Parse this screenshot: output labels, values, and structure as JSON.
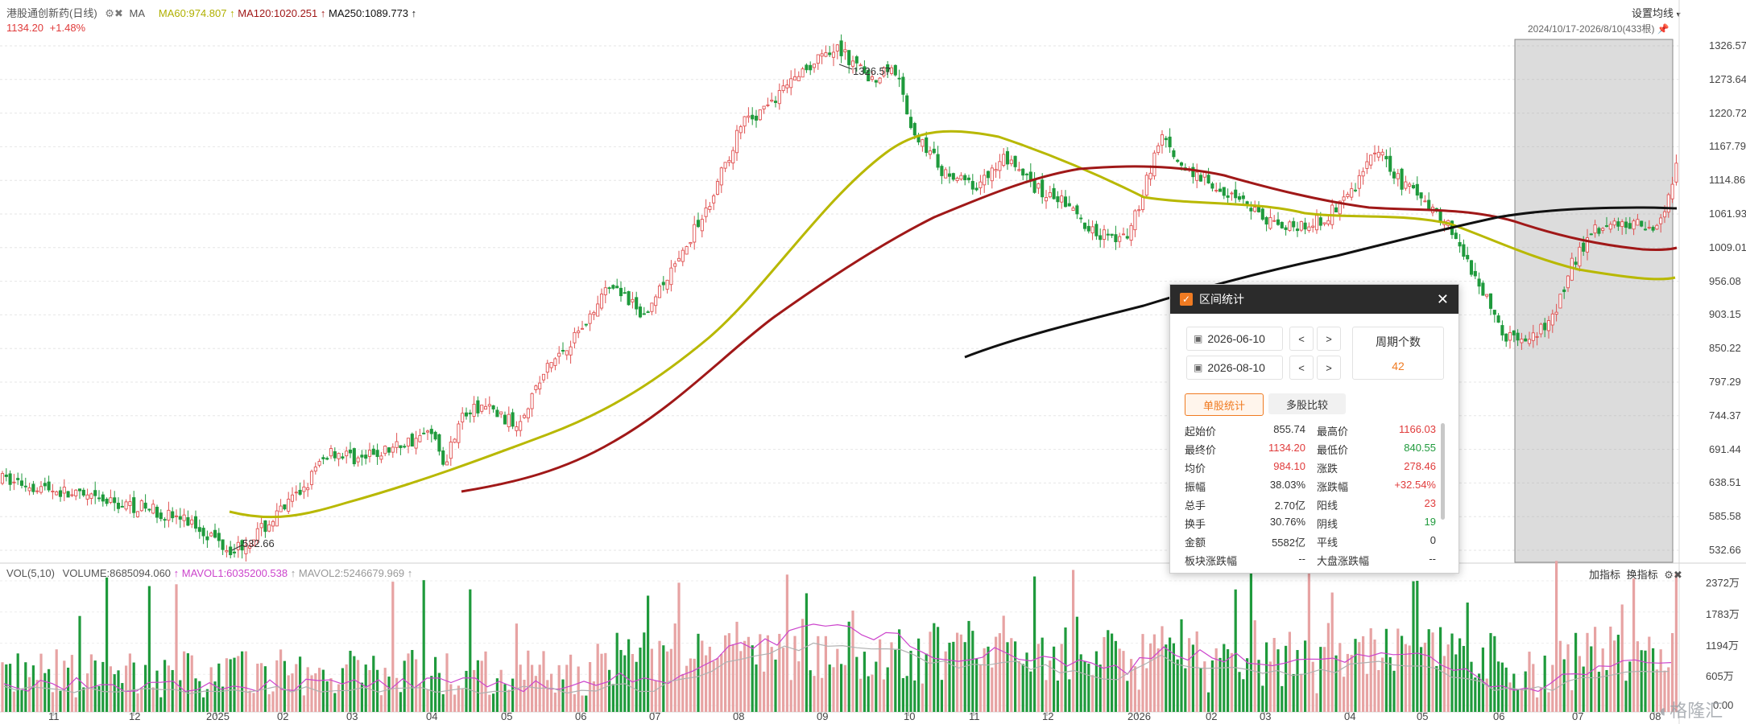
{
  "header": {
    "stock_name": "港股通创新药(日线)",
    "indicator_label": "MA",
    "ma60": "MA60:974.807",
    "ma120": "MA120:1020.251",
    "ma250": "MA250:1089.773",
    "last_price": "1134.20",
    "change_pct": "+1.48%",
    "settings_label": "设置均线",
    "range_label": "2024/10/17-2026/8/10(433根)"
  },
  "price_axis": [
    "1326.57",
    "1273.64",
    "1220.72",
    "1167.79",
    "1114.86",
    "1061.93",
    "1009.01",
    "956.08",
    "903.15",
    "850.22",
    "797.29",
    "744.37",
    "691.44",
    "638.51",
    "585.58",
    "532.66"
  ],
  "annotations": {
    "high_label": "1326.57",
    "low_label": "532.66"
  },
  "volume": {
    "vol_label": "VOL(5,10)",
    "volume_value": "VOLUME:8685094.060",
    "mavol1": "MAVOL1:6035200.538",
    "mavol2": "MAVOL2:5246679.969",
    "add_indicator": "加指标",
    "switch_indicator": "换指标",
    "axis": [
      "2372万",
      "1783万",
      "1194万",
      "605万",
      "0.00"
    ]
  },
  "x_axis": [
    "11",
    "12",
    "2025",
    "02",
    "03",
    "04",
    "05",
    "06",
    "07",
    "08",
    "09",
    "10",
    "11",
    "12",
    "2026",
    "02",
    "03",
    "04",
    "05",
    "06",
    "07",
    "08"
  ],
  "watermark": "格隆汇",
  "panel": {
    "title": "区间统计",
    "start_date": "2026-06-10",
    "end_date": "2026-08-10",
    "period_title": "周期个数",
    "period_count": "42",
    "tab_single": "单股统计",
    "tab_compare": "多股比较",
    "rows": [
      {
        "l1": "起始价",
        "v1": "855.74",
        "l2": "最高价",
        "v2": "1166.03"
      },
      {
        "l1": "最终价",
        "v1": "1134.20",
        "l2": "最低价",
        "v2": "840.55"
      },
      {
        "l1": "均价",
        "v1": "984.10",
        "l2": "涨跌",
        "v2": "278.46"
      },
      {
        "l1": "振幅",
        "v1": "38.03%",
        "l2": "涨跌幅",
        "v2": "+32.54%"
      },
      {
        "l1": "总手",
        "v1": "2.70亿",
        "l2": "阳线",
        "v2": "23"
      },
      {
        "l1": "换手",
        "v1": "30.76%",
        "l2": "阴线",
        "v2": "19"
      },
      {
        "l1": "金额",
        "v1": "5582亿",
        "l2": "平线",
        "v2": "0"
      },
      {
        "l1": "板块涨跌幅",
        "v1": "--",
        "l2": "大盘涨跌幅",
        "v2": "--"
      }
    ]
  },
  "chart_data": {
    "type": "candlestick",
    "ma_colors": {
      "ma60": "#b8b800",
      "ma120": "#a01818",
      "ma250": "#111111",
      "up": "#e05050",
      "down": "#1f9a3c"
    },
    "y_range": [
      532.66,
      1326.57
    ],
    "key_points": [
      {
        "date": "2025-01",
        "price": 532.66
      },
      {
        "date": "2025-09",
        "price": 1326.57
      },
      {
        "date": "2026-08-10",
        "price": 1134.2
      }
    ]
  }
}
